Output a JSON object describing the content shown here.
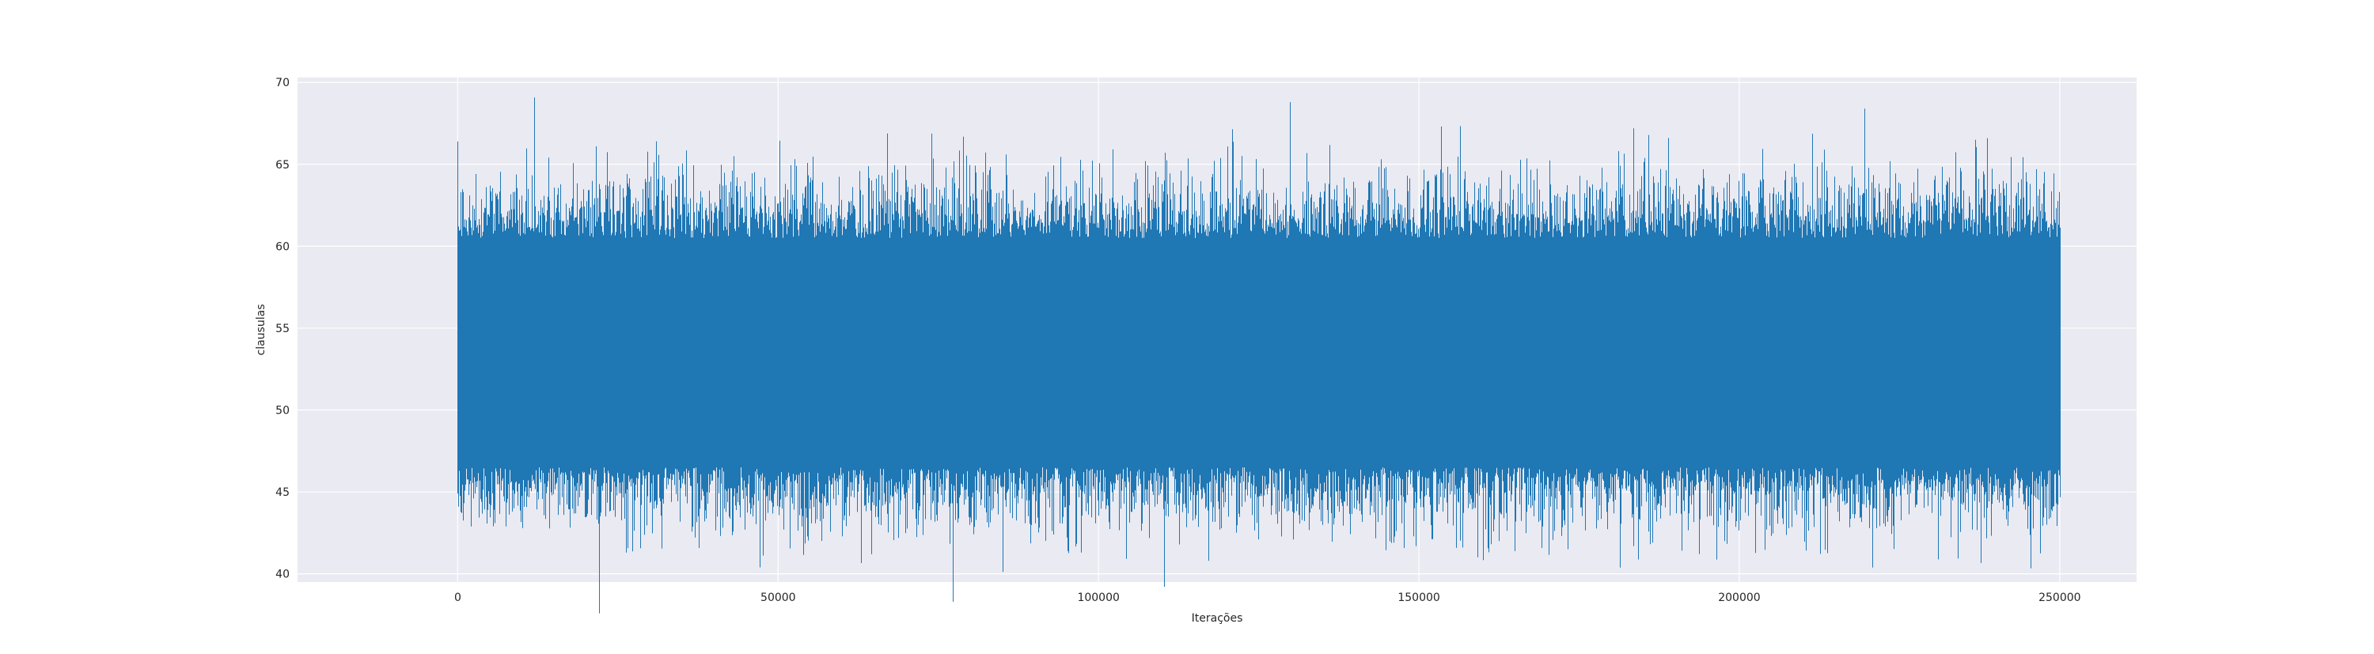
{
  "chart_data": {
    "type": "line",
    "title": "",
    "xlabel": "Iterações",
    "ylabel": "clausulas",
    "xlim": [
      -25000,
      262000
    ],
    "ylim": [
      39.5,
      70.3
    ],
    "xticks": [
      0,
      50000,
      100000,
      150000,
      200000,
      250000
    ],
    "xtick_labels": [
      "0",
      "50000",
      "100000",
      "150000",
      "200000",
      "250000"
    ],
    "yticks": [
      40,
      45,
      50,
      55,
      60,
      65,
      70
    ],
    "ytick_labels": [
      "40",
      "45",
      "50",
      "55",
      "60",
      "65",
      "70"
    ],
    "grid": true,
    "legend": "none",
    "series": [
      {
        "color": "#1f77b4",
        "n_points": 250000,
        "x_range": [
          0,
          250000
        ],
        "summary": {
          "dense_band": [
            46.5,
            60.5
          ],
          "typical_min": 44,
          "typical_max": 63,
          "center": 53.5
        },
        "extremes": [
          {
            "x": 0,
            "y": 64.7
          },
          {
            "x": 0,
            "y": 44.9
          },
          {
            "x": 21500,
            "y": 66.1
          },
          {
            "x": 26200,
            "y": 41.3
          },
          {
            "x": 31000,
            "y": 66.4
          },
          {
            "x": 64500,
            "y": 41.2
          },
          {
            "x": 117200,
            "y": 40.8
          },
          {
            "x": 129800,
            "y": 68.8
          },
          {
            "x": 146000,
            "y": 41.9
          },
          {
            "x": 183400,
            "y": 67.2
          },
          {
            "x": 197600,
            "y": 42.0
          },
          {
            "x": 219500,
            "y": 68.4
          },
          {
            "x": 236800,
            "y": 66.5
          }
        ]
      }
    ]
  }
}
